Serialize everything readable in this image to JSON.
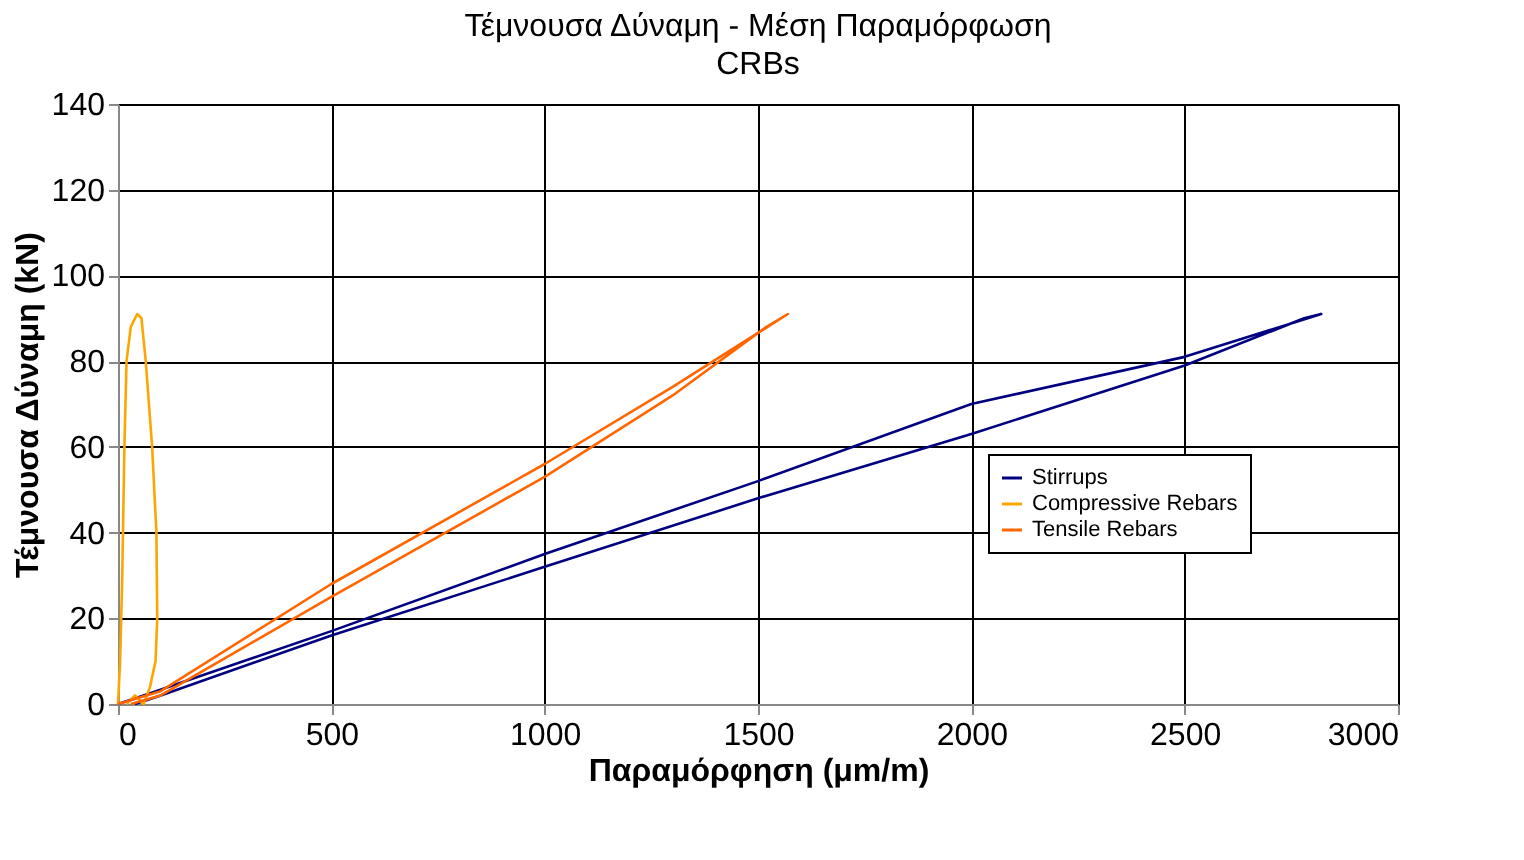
{
  "chart_data": {
    "type": "line",
    "title": "Τέμνουσα Δύναμη - Μέση Παραμόρφωση",
    "subtitle": "CRBs",
    "xlabel": "Παραμόρφηση (μm/m)",
    "ylabel": "Τέμνουσα Δύναμη (kN)",
    "xlim": [
      0,
      3000
    ],
    "xticks": [
      0,
      500,
      1000,
      1500,
      2000,
      2500,
      3000
    ],
    "ylim": [
      0,
      140
    ],
    "yticks": [
      0,
      20,
      40,
      60,
      80,
      100,
      120,
      140
    ],
    "grid": true,
    "legend": "right",
    "marker": "none",
    "line_style": "solid",
    "series": [
      {
        "name": "Stirrups",
        "color": "#000080",
        "x": [
          0,
          60,
          500,
          1000,
          1500,
          2000,
          2500,
          2820,
          2780,
          2500,
          2000,
          1500,
          1000,
          500,
          100,
          40
        ],
        "values": [
          0,
          2,
          17,
          35,
          52,
          70,
          81,
          91,
          90,
          79,
          63,
          48,
          32,
          16,
          2,
          0
        ]
      },
      {
        "name": "Compressive Rebars",
        "color": "#ffa500",
        "x": [
          0,
          5,
          10,
          15,
          20,
          30,
          45,
          55,
          65,
          80,
          90,
          92,
          88,
          75,
          60,
          40,
          20
        ],
        "values": [
          0,
          10,
          30,
          60,
          80,
          88,
          91,
          90,
          80,
          60,
          40,
          20,
          10,
          4,
          0,
          2,
          0
        ]
      },
      {
        "name": "Tensile Rebars",
        "color": "#ff6600",
        "x": [
          0,
          100,
          500,
          1000,
          1300,
          1570,
          1520,
          1300,
          1000,
          500,
          100,
          30
        ],
        "values": [
          0,
          3,
          28,
          56,
          74,
          91,
          88,
          72,
          53,
          25,
          2,
          0
        ]
      }
    ]
  }
}
